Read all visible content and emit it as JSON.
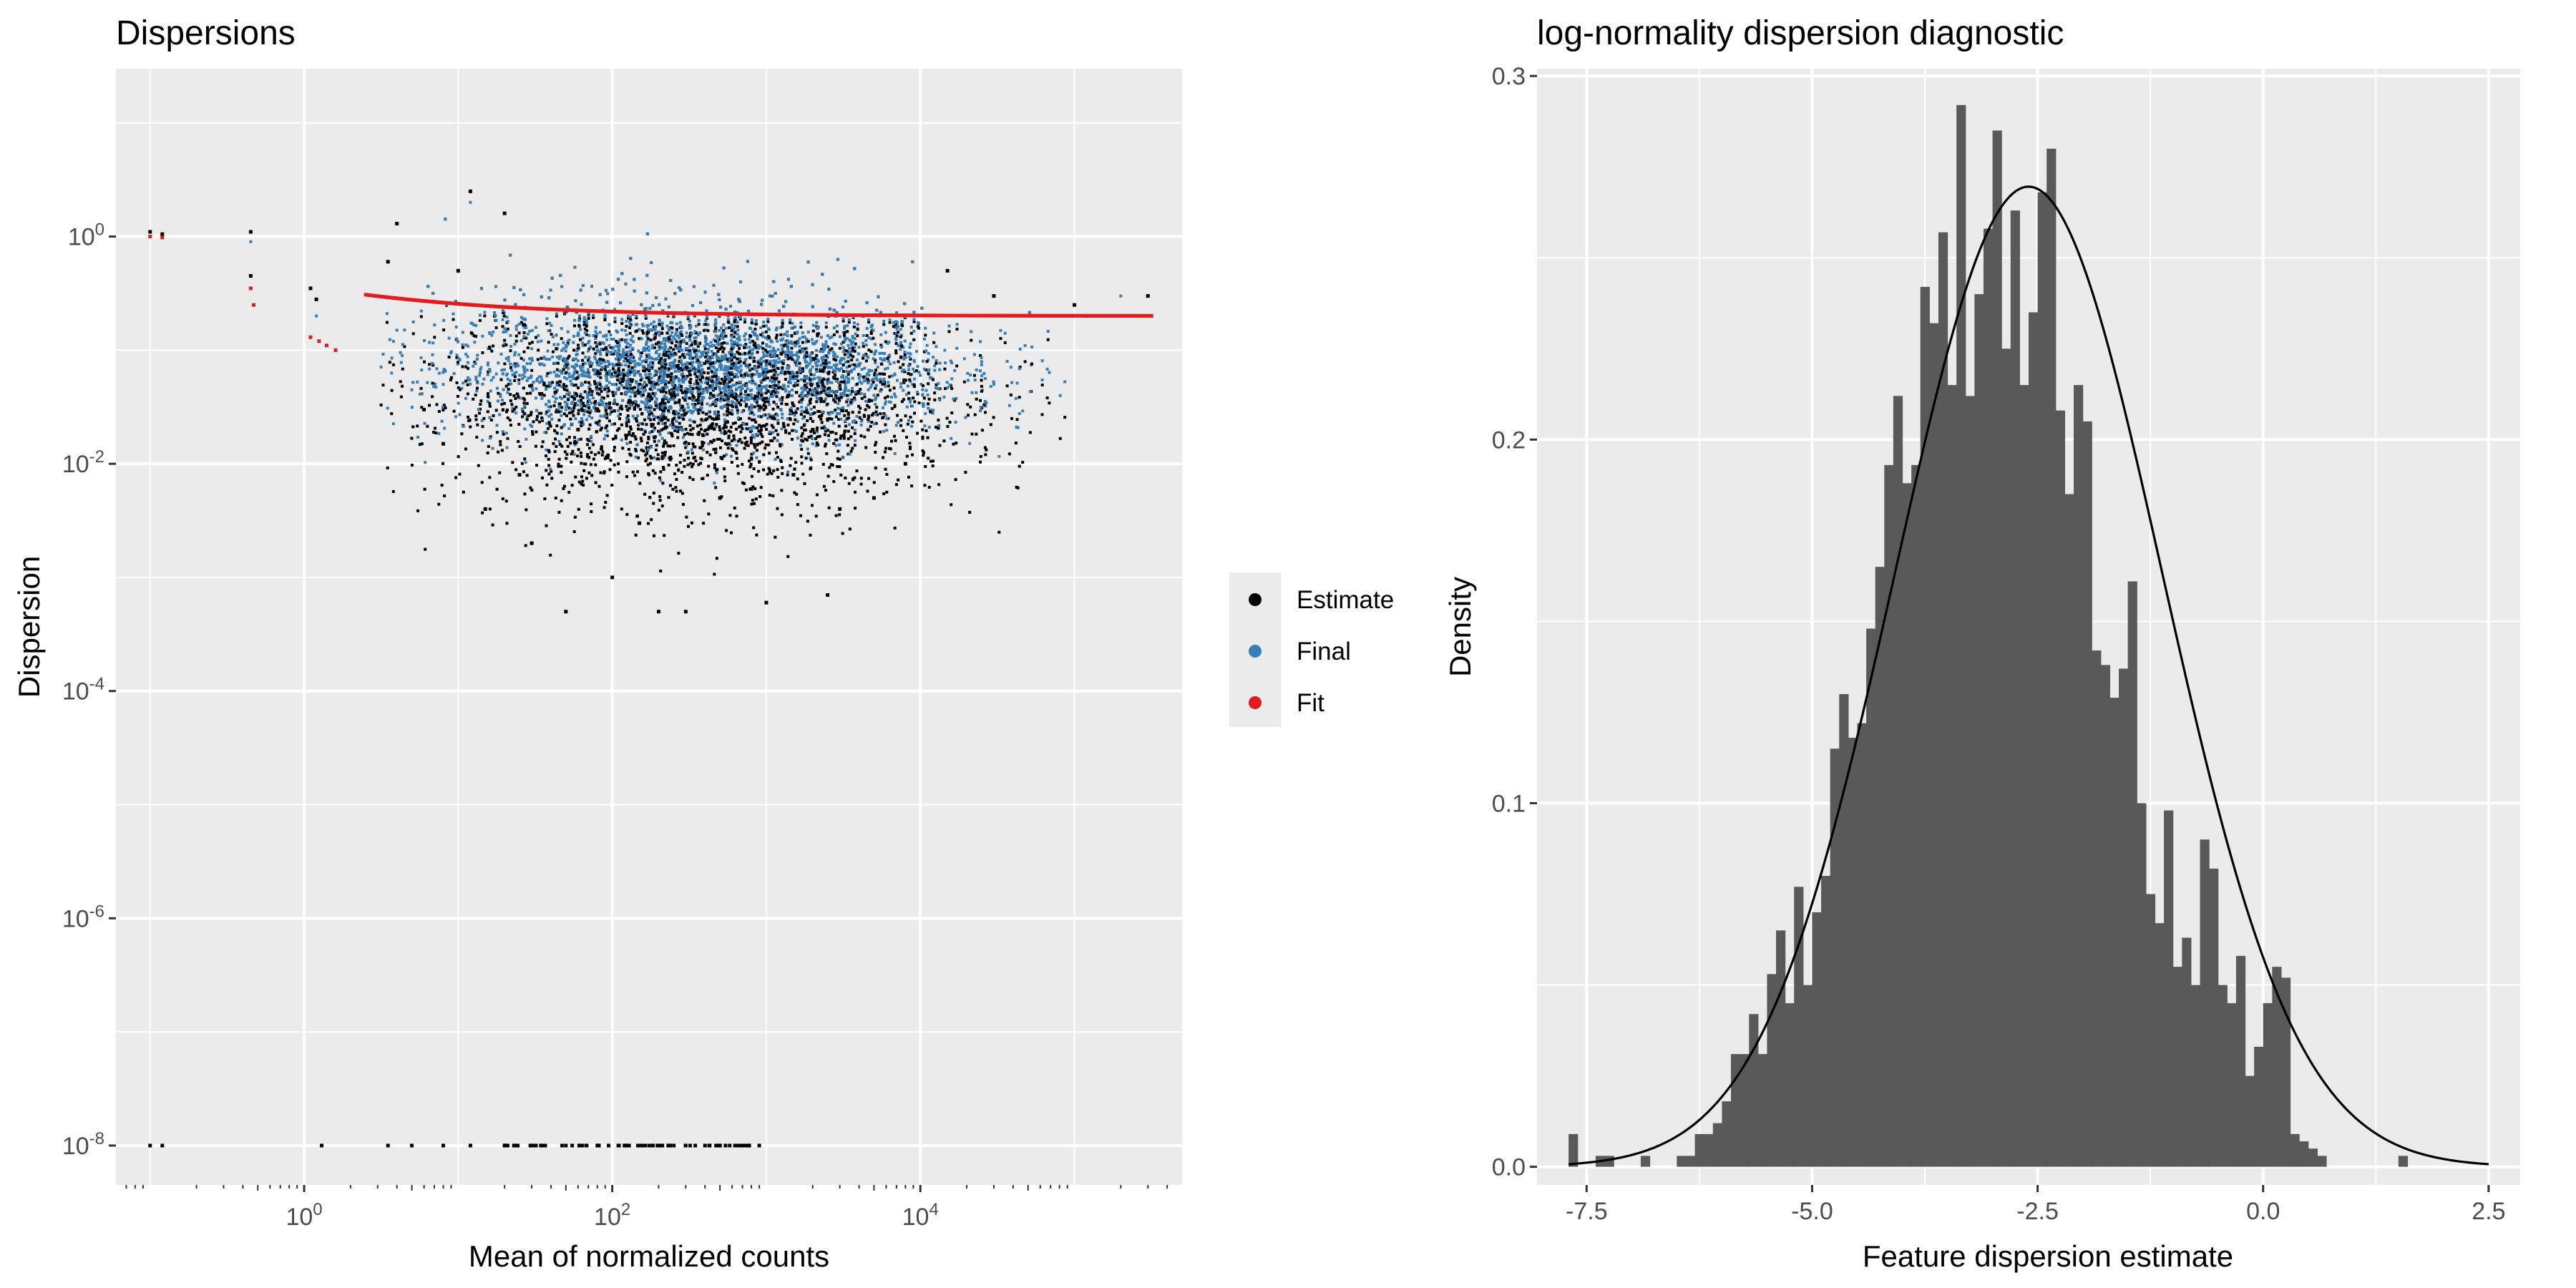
{
  "chart_data": [
    {
      "type": "scatter",
      "title": "Dispersions",
      "xlabel": "Mean of normalized counts",
      "ylabel": "Dispersion",
      "x_scale": "log10",
      "y_scale": "log10",
      "xlim": [
        0.06,
        500000
      ],
      "ylim": [
        4.5e-09,
        30
      ],
      "x_ticks": [
        {
          "value": 1,
          "base": "10",
          "exp": "0"
        },
        {
          "value": 100,
          "base": "10",
          "exp": "2"
        },
        {
          "value": 10000,
          "base": "10",
          "exp": "4"
        }
      ],
      "y_ticks": [
        {
          "value": 1e-08,
          "base": "10",
          "exp": "-8"
        },
        {
          "value": 1e-06,
          "base": "10",
          "exp": "-6"
        },
        {
          "value": 0.0001,
          "base": "10",
          "exp": "-4"
        },
        {
          "value": 0.01,
          "base": "10",
          "exp": "-2"
        },
        {
          "value": 1,
          "base": "10",
          "exp": "0"
        }
      ],
      "grid": true,
      "legend_position": "right",
      "legend": [
        {
          "name": "Estimate",
          "color": "#000000"
        },
        {
          "name": "Final",
          "color": "#377eb8"
        },
        {
          "name": "Fit",
          "color": "#e41a1c"
        }
      ],
      "fit_curve": {
        "x": [
          0.1,
          0.12,
          0.4,
          0.45,
          1,
          1.3,
          2,
          3,
          5,
          10,
          20,
          50,
          100,
          300,
          1000,
          3000,
          10000,
          30000,
          100000,
          300000
        ],
        "y": [
          1.0,
          1.0,
          0.35,
          0.25,
          0.13,
          0.11,
          0.085,
          0.65,
          0.45,
          0.33,
          0.28,
          0.24,
          0.225,
          0.21,
          0.205,
          0.2,
          0.2,
          0.2,
          0.2,
          0.2
        ]
      },
      "estimate_points": [
        [
          0.1,
          1.1
        ],
        [
          0.12,
          1.05
        ],
        [
          0.45,
          0.45
        ],
        [
          0.45,
          1.1
        ],
        [
          1.1,
          0.35
        ],
        [
          1.2,
          0.28
        ],
        [
          3.5,
          0.6
        ],
        [
          4,
          1.3
        ],
        [
          6,
          0.03
        ],
        [
          8,
          0.015
        ],
        [
          10,
          0.5
        ],
        [
          12,
          2.5
        ],
        [
          15,
          0.004
        ],
        [
          20,
          1.6
        ],
        [
          25,
          0.008
        ],
        [
          30,
          0.002
        ],
        [
          50,
          0.0005
        ],
        [
          60,
          0.02
        ],
        [
          80,
          0.03
        ],
        [
          100,
          0.001
        ],
        [
          150,
          0.003
        ],
        [
          200,
          0.0005
        ],
        [
          300,
          0.0005
        ],
        [
          500,
          0.005
        ],
        [
          800,
          0.006
        ],
        [
          1000,
          0.0006
        ],
        [
          1500,
          0.008
        ],
        [
          2000,
          0.02
        ],
        [
          2500,
          0.0007
        ],
        [
          3000,
          0.004
        ],
        [
          5000,
          0.005
        ],
        [
          8000,
          0.01
        ],
        [
          15000,
          0.5
        ],
        [
          30000,
          0.3
        ],
        [
          100000,
          0.25
        ],
        [
          300000,
          0.3
        ],
        [
          120000,
          0.2
        ],
        [
          0.1,
          1e-08
        ],
        [
          0.12,
          1e-08
        ],
        [
          1.3,
          1e-08
        ],
        [
          3.5,
          1e-08
        ],
        [
          5,
          1e-08
        ],
        [
          8,
          1e-08
        ],
        [
          12,
          1e-08
        ],
        [
          20,
          1e-08
        ],
        [
          30,
          1e-08
        ],
        [
          50,
          1e-08
        ],
        [
          80,
          1e-08
        ],
        [
          120,
          1e-08
        ],
        [
          200,
          1e-08
        ],
        [
          300,
          1e-08
        ],
        [
          500,
          1e-08
        ],
        [
          900,
          1e-08
        ]
      ],
      "final_points": [
        [
          0.45,
          0.9
        ],
        [
          1.2,
          0.2
        ],
        [
          4,
          0.15
        ],
        [
          8,
          0.05
        ],
        [
          12,
          2
        ],
        [
          25,
          0.06
        ],
        [
          50,
          0.03
        ],
        [
          100,
          0.05
        ],
        [
          300,
          0.04
        ],
        [
          800,
          0.02
        ],
        [
          2000,
          0.015
        ],
        [
          5000,
          0.04
        ],
        [
          10000,
          0.06
        ],
        [
          30000,
          0.05
        ],
        [
          200000,
          0.3
        ]
      ],
      "cloud": {
        "x_log_center": 2.6,
        "x_log_sd": 0.85,
        "y_log_center": -1.45,
        "y_log_sd": 0.45
      }
    },
    {
      "type": "histogram",
      "title": "log-normality dispersion diagnostic",
      "xlabel": "Feature dispersion estimate",
      "ylabel": "Density",
      "xlim": [
        -8.05,
        2.85
      ],
      "ylim": [
        -0.005,
        0.302
      ],
      "x_ticks": [
        {
          "value": -7.5,
          "label": "-7.5"
        },
        {
          "value": -5.0,
          "label": "-5.0"
        },
        {
          "value": -2.5,
          "label": "-2.5"
        },
        {
          "value": 0.0,
          "label": "0.0"
        },
        {
          "value": 2.5,
          "label": "2.5"
        }
      ],
      "y_ticks": [
        {
          "value": 0.0,
          "label": "0.0"
        },
        {
          "value": 0.1,
          "label": "0.1"
        },
        {
          "value": 0.2,
          "label": "0.2"
        },
        {
          "value": 0.3,
          "label": "0.3"
        }
      ],
      "grid": true,
      "bins": {
        "start": -7.7,
        "width": 0.1,
        "density": [
          0.009,
          0.0,
          0.0,
          0.003,
          0.003,
          0.0,
          0.0,
          0.0,
          0.003,
          0.0,
          0.0,
          0.0,
          0.003,
          0.003,
          0.009,
          0.009,
          0.012,
          0.018,
          0.031,
          0.031,
          0.042,
          0.031,
          0.053,
          0.065,
          0.045,
          0.077,
          0.05,
          0.07,
          0.08,
          0.115,
          0.13,
          0.118,
          0.122,
          0.148,
          0.165,
          0.193,
          0.212,
          0.188,
          0.193,
          0.242,
          0.232,
          0.257,
          0.215,
          0.292,
          0.212,
          0.24,
          0.258,
          0.285,
          0.225,
          0.263,
          0.215,
          0.235,
          0.268,
          0.28,
          0.208,
          0.185,
          0.215,
          0.205,
          0.142,
          0.138,
          0.129,
          0.137,
          0.161,
          0.1,
          0.075,
          0.067,
          0.098,
          0.055,
          0.063,
          0.05,
          0.09,
          0.082,
          0.05,
          0.045,
          0.058,
          0.025,
          0.033,
          0.045,
          0.055,
          0.052,
          0.009,
          0.007,
          0.005,
          0.003,
          0.0,
          0.0,
          0.0,
          0.0,
          0.0,
          0.0,
          0.0,
          0.0,
          0.003
        ]
      },
      "normal_curve": {
        "mean": -2.6,
        "sd": 1.48
      }
    }
  ]
}
